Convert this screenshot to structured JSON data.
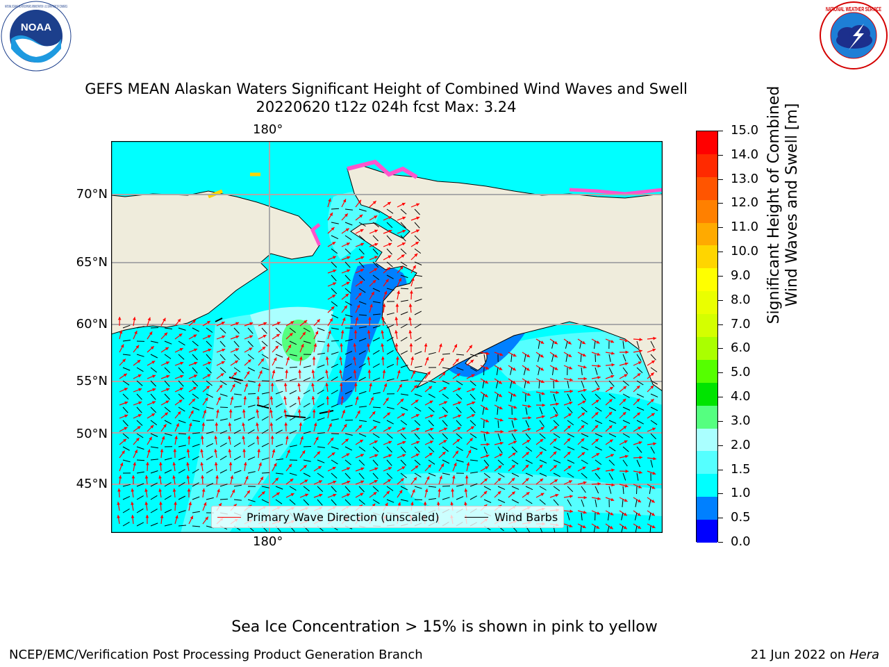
{
  "title_line1": "GEFS MEAN Alaskan Waters Significant Height of Combined Wind Waves and Swell",
  "title_line2": "20220620 t12z 024h fcst   Max: 3.24",
  "lon_label_top": "180°",
  "lon_label_bottom": "180°",
  "lat_labels": [
    "70°N",
    "65°N",
    "60°N",
    "55°N",
    "50°N",
    "45°N"
  ],
  "colorbar": {
    "ticks": [
      "15.0",
      "14.0",
      "13.0",
      "12.0",
      "11.0",
      "10.0",
      "9.0",
      "8.0",
      "7.0",
      "6.0",
      "5.0",
      "4.0",
      "3.0",
      "2.0",
      "1.5",
      "1.0",
      "0.5",
      "0.0"
    ],
    "colors": [
      "#ff0000",
      "#ff2a00",
      "#ff5500",
      "#ff8000",
      "#ffaa00",
      "#ffd500",
      "#ffff00",
      "#eaff00",
      "#d4ff00",
      "#aaff00",
      "#55ff00",
      "#00e400",
      "#55ff80",
      "#aaffff",
      "#55ffff",
      "#00ffff",
      "#0080ff",
      "#0000ff"
    ],
    "label_line1": "Significant Height of Combined",
    "label_line2": "Wind Waves and Swell [m]"
  },
  "legend": {
    "primary_label": "Primary Wave Direction (unscaled)",
    "wind_label": "Wind Barbs",
    "primary_color": "#ff0000",
    "wind_color": "#000000"
  },
  "footer": {
    "sea_ice_note": "Sea Ice Concentration > 15% is shown in pink to yellow",
    "left": "NCEP/EMC/Verification Post Processing Product Generation Branch",
    "right_prefix": "21 Jun 2022 on",
    "right_machine": "Hera"
  },
  "logos": {
    "noaa_text": "NOAA",
    "noaa_ring": "NATIONAL OCEANIC AND ATMOSPHERIC ADMINISTRATION · U.S. DEPARTMENT OF COMMERCE",
    "nws_ring": "NATIONAL WEATHER SERVICE"
  },
  "colors": {
    "land": "#efecdc",
    "ocean_base": "#00ffff",
    "ocean_mid": "#55ffff",
    "ocean_shallow": "#0080ff",
    "ocean_peak": "#55ff80",
    "sea_ice": "#ff55cc"
  }
}
